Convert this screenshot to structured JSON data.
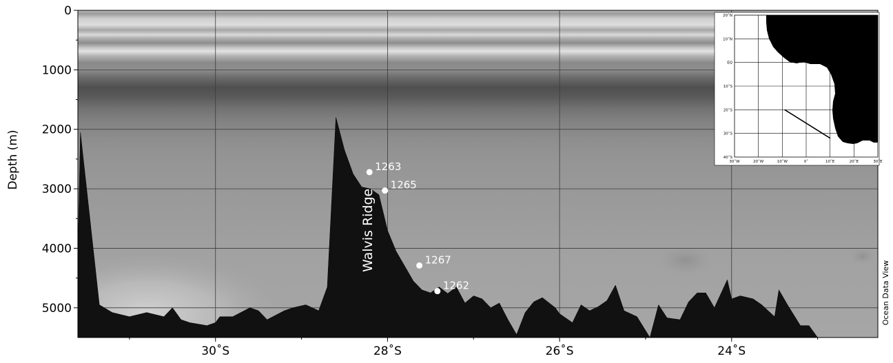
{
  "chart_data": {
    "type": "area",
    "title": "",
    "xlabel": "",
    "ylabel": "Depth (m)",
    "x_axis": {
      "unit": "degrees latitude (negative = south)",
      "range": [
        -31.6,
        -22.3
      ],
      "ticks": [
        -30,
        -28,
        -26,
        -24
      ],
      "tick_labels": [
        "30˚S",
        "28˚S",
        "26˚S",
        "24˚S"
      ],
      "reversed": false
    },
    "y_axis": {
      "range": [
        0,
        5500
      ],
      "reversed": true,
      "ticks": [
        0,
        1000,
        2000,
        3000,
        4000,
        5000
      ],
      "tick_labels": [
        "0",
        "1000",
        "2000",
        "3000",
        "4000",
        "5000"
      ]
    },
    "grid": true,
    "background": "grayscale water-column property section (oscillating bands 0-900 m, dark minimum near 1500 m)",
    "seafloor": {
      "name": "seafloor bathymetry",
      "color": "#111111",
      "lat": [
        -31.62,
        -31.57,
        -31.35,
        -31.2,
        -31.0,
        -30.8,
        -30.6,
        -30.5,
        -30.4,
        -30.3,
        -30.1,
        -30.0,
        -29.95,
        -29.8,
        -29.6,
        -29.5,
        -29.4,
        -29.2,
        -29.1,
        -28.95,
        -28.8,
        -28.7,
        -28.6,
        -28.5,
        -28.4,
        -28.3,
        -28.2,
        -28.1,
        -28.05,
        -28.0,
        -27.9,
        -27.8,
        -27.7,
        -27.6,
        -27.5,
        -27.4,
        -27.3,
        -27.2,
        -27.1,
        -27.0,
        -26.9,
        -26.8,
        -26.7,
        -26.6,
        -26.5,
        -26.4,
        -26.3,
        -26.2,
        -26.05,
        -26.0,
        -25.85,
        -25.75,
        -25.65,
        -25.55,
        -25.45,
        -25.35,
        -25.25,
        -25.1,
        -24.95,
        -24.85,
        -24.75,
        -24.6,
        -24.5,
        -24.4,
        -24.3,
        -24.2,
        -24.05,
        -24.0,
        -23.9,
        -23.75,
        -23.65,
        -23.5,
        -23.45,
        -23.35,
        -23.2,
        -23.1,
        -23.0,
        -22.9,
        -22.75,
        -22.6,
        -22.4,
        -22.3
      ],
      "depth": [
        5500,
        2050,
        4950,
        5080,
        5150,
        5080,
        5150,
        5000,
        5200,
        5250,
        5300,
        5250,
        5150,
        5150,
        5000,
        5050,
        5200,
        5050,
        5000,
        4950,
        5050,
        4650,
        1800,
        2350,
        2750,
        2970,
        3000,
        3100,
        3400,
        3700,
        4050,
        4300,
        4550,
        4700,
        4750,
        4650,
        4760,
        4650,
        4920,
        4800,
        4850,
        5000,
        4920,
        5200,
        5450,
        5080,
        4900,
        4830,
        5000,
        5100,
        5250,
        4950,
        5050,
        4980,
        4880,
        4620,
        5050,
        5150,
        5500,
        4950,
        5170,
        5200,
        4900,
        4750,
        4750,
        5000,
        4530,
        4850,
        4800,
        4850,
        4950,
        5150,
        4700,
        4950,
        5300,
        5300,
        5500,
        5500,
        5500,
        5500,
        5500,
        5500
      ]
    },
    "stations": [
      {
        "label": "1263",
        "lat": -28.21,
        "depth": 2720
      },
      {
        "label": "1265",
        "lat": -28.03,
        "depth": 3030
      },
      {
        "label": "1267",
        "lat": -27.63,
        "depth": 4290
      },
      {
        "label": "1262",
        "lat": -27.42,
        "depth": 4720
      }
    ],
    "annotations": [
      "Walvis Ridge"
    ]
  },
  "annotations": {
    "ridge": "Walvis Ridge",
    "software": "Ocean Data View"
  },
  "inset_map": {
    "lon_labels": [
      "30˚W",
      "20˚W",
      "10˚W",
      "0˚",
      "10˚E",
      "20˚E",
      "30˚E"
    ],
    "lat_labels": [
      "20˚N",
      "10˚N",
      "EQ",
      "10˚S",
      "20˚S",
      "30˚S",
      "40˚S"
    ],
    "land_color": "#000000",
    "transect_from": {
      "lon": -9,
      "lat": -20
    },
    "transect_to": {
      "lon": 10,
      "lat": -32
    }
  }
}
